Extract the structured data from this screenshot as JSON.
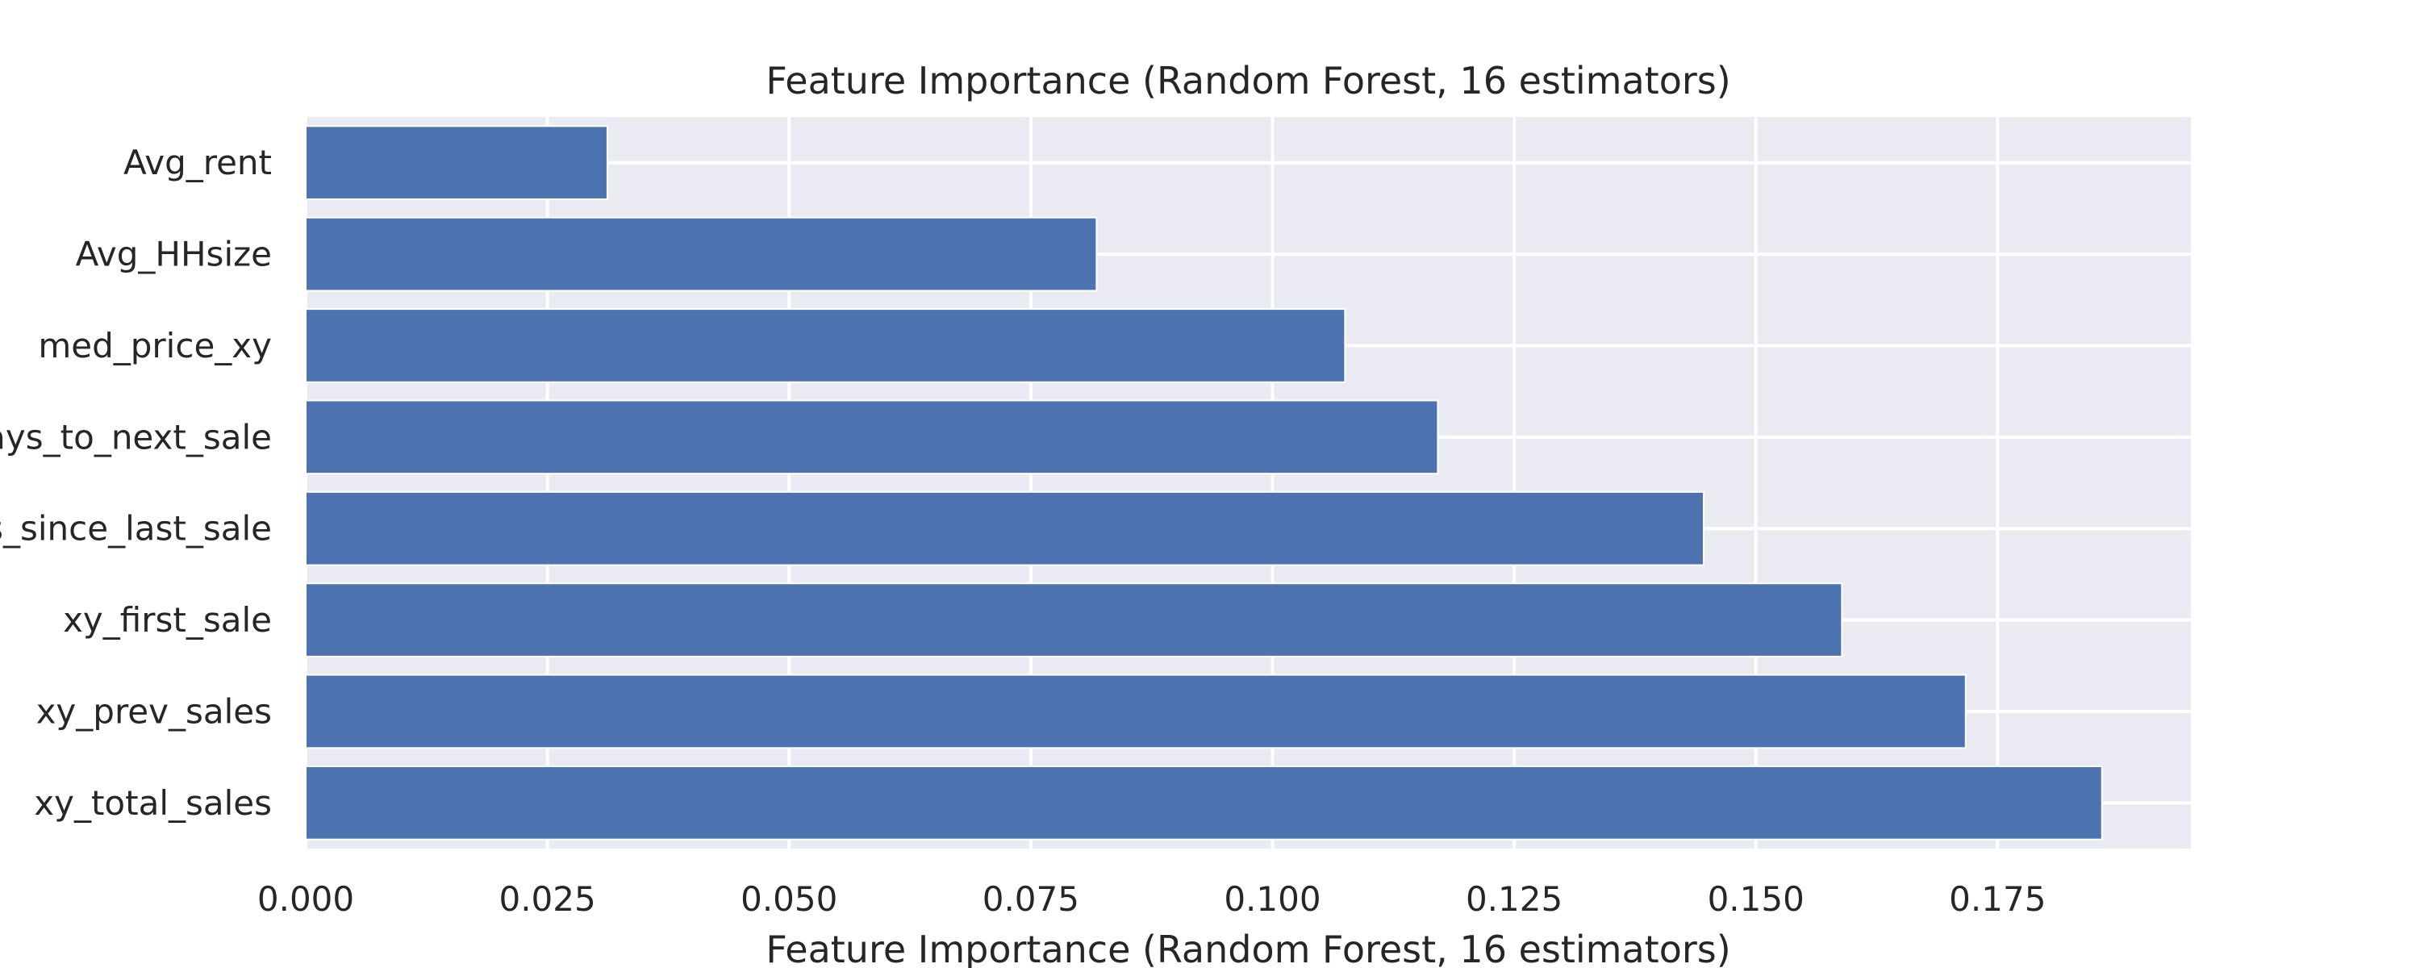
{
  "chart_data": {
    "type": "bar",
    "orientation": "horizontal",
    "title": "Feature Importance (Random Forest, 16 estimators)",
    "xlabel": "Feature Importance (Random Forest, 16 estimators)",
    "ylabel": "",
    "categories": [
      "Avg_rent",
      "Avg_HHsize",
      "med_price_xy",
      "days_to_next_sale",
      "days_since_last_sale",
      "xy_first_sale",
      "xy_prev_sales",
      "xy_total_sales"
    ],
    "values": [
      0.0312,
      0.0818,
      0.1075,
      0.1171,
      0.1446,
      0.1589,
      0.1717,
      0.1858
    ],
    "xlim": [
      0,
      0.195
    ],
    "xticks": [
      0.0,
      0.025,
      0.05,
      0.075,
      0.1,
      0.125,
      0.15,
      0.175
    ],
    "xtick_labels": [
      "0.000",
      "0.025",
      "0.050",
      "0.075",
      "0.100",
      "0.125",
      "0.150",
      "0.175"
    ],
    "grid": true,
    "bar_color": "#4c72b0",
    "background_color": "#eaeaf2",
    "grid_color": "#ffffff"
  }
}
